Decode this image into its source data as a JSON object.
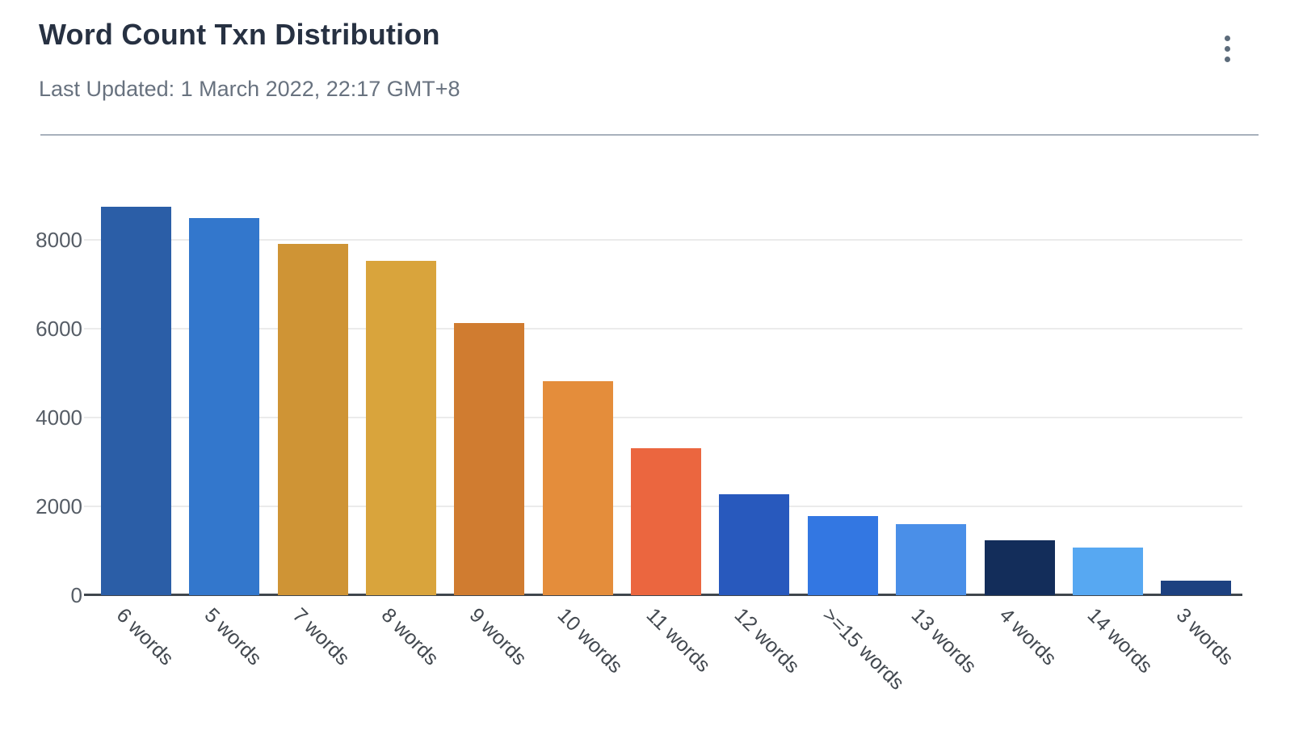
{
  "header": {
    "title": "Word Count Txn Distribution",
    "subtitle": "Last Updated: 1 March 2022, 22:17 GMT+8",
    "menu_icon": "kebab-vertical-dots"
  },
  "chart_data": {
    "type": "bar",
    "title": "Word Count Txn Distribution",
    "categories": [
      "6 words",
      "5 words",
      "7 words",
      "8 words",
      "9 words",
      "10 words",
      "11 words",
      "12 words",
      ">=15 words",
      "13 words",
      "4 words",
      "14 words",
      "3 words"
    ],
    "values": [
      8750,
      8490,
      7910,
      7530,
      6130,
      4820,
      3310,
      2270,
      1780,
      1600,
      1240,
      1070,
      330
    ],
    "colors": [
      "#2b5ea7",
      "#3377cc",
      "#cf9435",
      "#d9a43c",
      "#d07c30",
      "#e48d3b",
      "#eb663f",
      "#2859bd",
      "#3377e2",
      "#4a8fe8",
      "#132d5a",
      "#57a8f2",
      "#1d4180"
    ],
    "xlabel": "",
    "ylabel": "",
    "ylim": [
      0,
      9000
    ],
    "yticks": [
      0,
      2000,
      4000,
      6000,
      8000
    ],
    "grid": "horizontal",
    "legend": "none",
    "x_label_rotation_deg": 45,
    "axis_color": "#40464d",
    "gridline_color": "#ebebeb"
  }
}
